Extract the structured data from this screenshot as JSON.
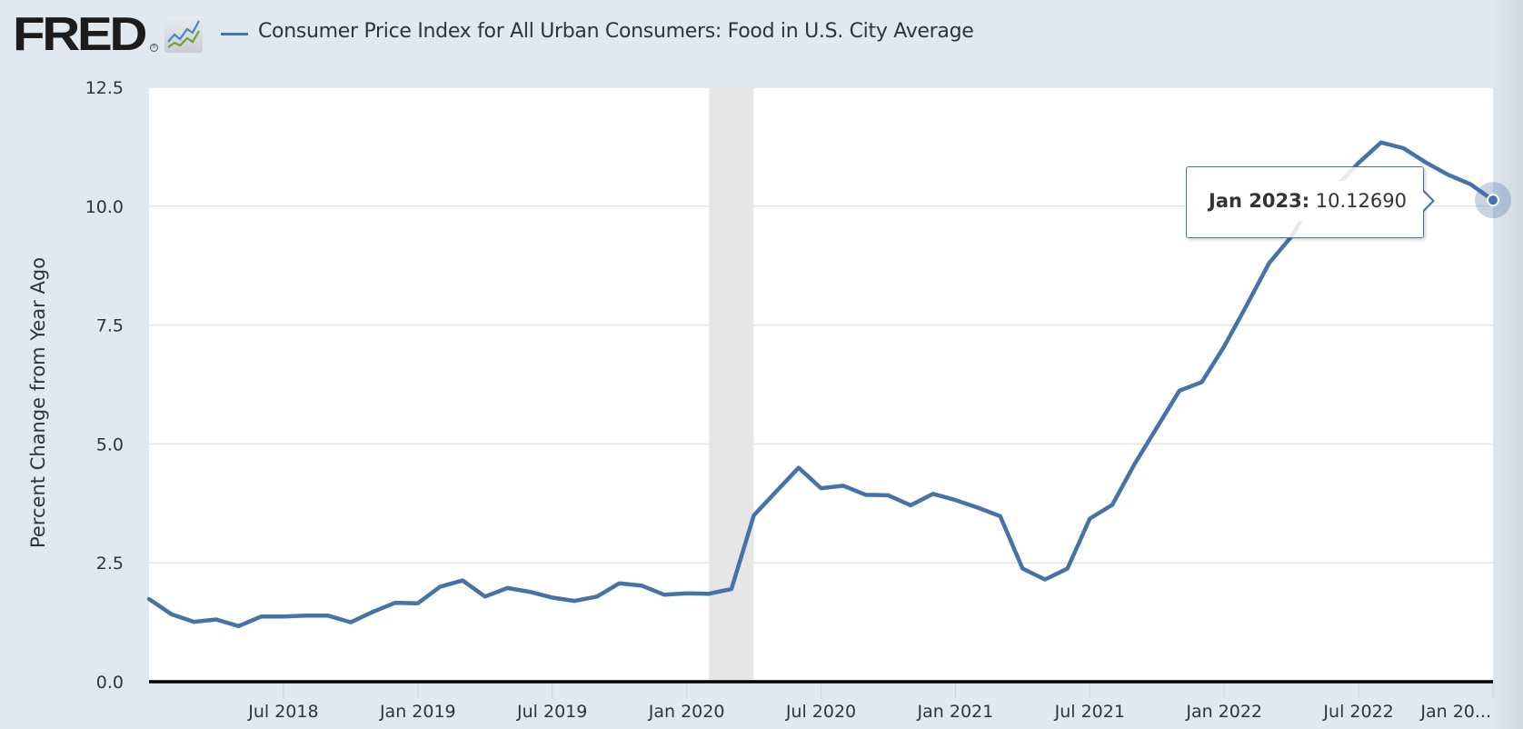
{
  "header": {
    "logo_text": "FRED",
    "logo_reg": "®",
    "logo_icon": "line-chart-icon",
    "series_title": "Consumer Price Index for All Urban Consumers: Food in U.S. City Average"
  },
  "colors": {
    "series": "#4572a7",
    "background": "#e1e9f0",
    "plot_background": "#ffffff",
    "recession": "#e6e6e6",
    "gridline": "#e6e6e6"
  },
  "tooltip": {
    "date": "Jan 2023:",
    "value": "10.12690"
  },
  "chart_data": {
    "type": "line",
    "title": "Consumer Price Index for All Urban Consumers: Food in U.S. City Average",
    "xlabel": "",
    "ylabel": "Percent Change from Year Ago",
    "ylim": [
      0,
      12.5
    ],
    "yticks": [
      "0.0",
      "2.5",
      "5.0",
      "7.5",
      "10.0",
      "12.5"
    ],
    "ytick_values": [
      0,
      2.5,
      5,
      7.5,
      10,
      12.5
    ],
    "xlim": [
      "2018-01",
      "2023-01"
    ],
    "xticks": [
      {
        "label": "Jul 2018",
        "date": "2018-07"
      },
      {
        "label": "Jan 2019",
        "date": "2019-01"
      },
      {
        "label": "Jul 2019",
        "date": "2019-07"
      },
      {
        "label": "Jan 2020",
        "date": "2020-01"
      },
      {
        "label": "Jul 2020",
        "date": "2020-07"
      },
      {
        "label": "Jan 2021",
        "date": "2021-01"
      },
      {
        "label": "Jul 2021",
        "date": "2021-07"
      },
      {
        "label": "Jan 2022",
        "date": "2022-01"
      },
      {
        "label": "Jul 2022",
        "date": "2022-07"
      },
      {
        "label": "Jan 20...",
        "date": "2023-01"
      }
    ],
    "grid": true,
    "legend": "top-left",
    "recessions": [
      {
        "start": "2020-02",
        "end": "2020-04"
      }
    ],
    "series": [
      {
        "name": "Consumer Price Index for All Urban Consumers: Food in U.S. City Average",
        "x": [
          "2018-01",
          "2018-02",
          "2018-03",
          "2018-04",
          "2018-05",
          "2018-06",
          "2018-07",
          "2018-08",
          "2018-09",
          "2018-10",
          "2018-11",
          "2018-12",
          "2019-01",
          "2019-02",
          "2019-03",
          "2019-04",
          "2019-05",
          "2019-06",
          "2019-07",
          "2019-08",
          "2019-09",
          "2019-10",
          "2019-11",
          "2019-12",
          "2020-01",
          "2020-02",
          "2020-03",
          "2020-04",
          "2020-05",
          "2020-06",
          "2020-07",
          "2020-08",
          "2020-09",
          "2020-10",
          "2020-11",
          "2020-12",
          "2021-01",
          "2021-02",
          "2021-03",
          "2021-04",
          "2021-05",
          "2021-06",
          "2021-07",
          "2021-08",
          "2021-09",
          "2021-10",
          "2021-11",
          "2021-12",
          "2022-01",
          "2022-02",
          "2022-03",
          "2022-04",
          "2022-05",
          "2022-06",
          "2022-07",
          "2022-08",
          "2022-09",
          "2022-10",
          "2022-11",
          "2022-12",
          "2023-01"
        ],
        "values": [
          1.74,
          1.42,
          1.26,
          1.31,
          1.17,
          1.37,
          1.37,
          1.39,
          1.39,
          1.25,
          1.47,
          1.66,
          1.65,
          2.0,
          2.13,
          1.79,
          1.97,
          1.89,
          1.77,
          1.7,
          1.79,
          2.07,
          2.02,
          1.83,
          1.86,
          1.85,
          1.95,
          3.5,
          4.0,
          4.5,
          4.07,
          4.12,
          3.93,
          3.92,
          3.71,
          3.95,
          3.82,
          3.66,
          3.48,
          2.38,
          2.15,
          2.38,
          3.43,
          3.72,
          4.58,
          5.35,
          6.12,
          6.3,
          7.05,
          7.91,
          8.8,
          9.36,
          10.13,
          10.42,
          10.91,
          11.34,
          11.22,
          10.92,
          10.66,
          10.46,
          10.1269
        ]
      }
    ],
    "highlighted_point": {
      "date": "Jan 2023",
      "value": 10.1269
    }
  }
}
